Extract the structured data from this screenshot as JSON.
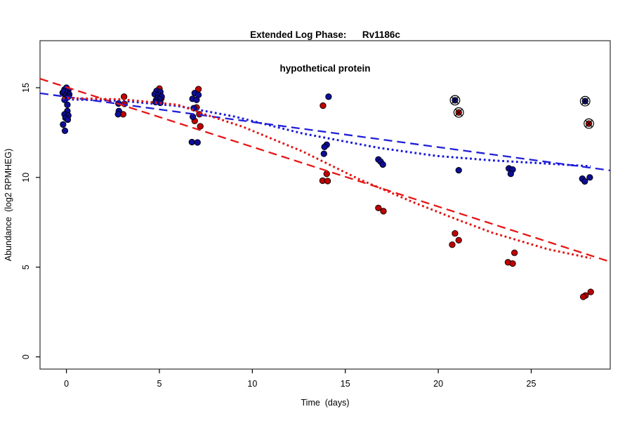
{
  "chart_data": {
    "type": "scatter",
    "title": "Extended Log Phase:      Rv1186c",
    "subtitle": "hypothetical protein",
    "xlabel": "Time  (days)",
    "ylabel": "Abundance  (log2 RPMHEG)",
    "xlim": [
      -1.42,
      29.25
    ],
    "ylim": [
      -0.68,
      17.62
    ],
    "xticks": [
      0,
      5,
      10,
      15,
      20,
      25
    ],
    "yticks": [
      0,
      5,
      10,
      15
    ],
    "grid": false,
    "legend": "none",
    "marker": {
      "radius": 4.2,
      "outline": "#000000",
      "flagged_symbol": "circle-x"
    },
    "colors": {
      "blue_points": "#0d0d96",
      "red_points": "#c00000",
      "blue_line": "#2020d8",
      "red_line": "#e81515",
      "box": "#404040"
    },
    "series": [
      {
        "name": "red",
        "color": "#c00000",
        "points": [
          [
            0.1,
            14.6
          ],
          [
            -0.05,
            14.45
          ],
          [
            3.1,
            14.5
          ],
          [
            3.12,
            14.1
          ],
          [
            3.05,
            13.52
          ],
          [
            5.0,
            14.95
          ],
          [
            5.1,
            14.4
          ],
          [
            7.1,
            14.92
          ],
          [
            7.0,
            13.9
          ],
          [
            7.15,
            13.52
          ],
          [
            6.9,
            13.15
          ],
          [
            7.2,
            12.85
          ],
          [
            13.8,
            14.0
          ],
          [
            14.0,
            10.2
          ],
          [
            13.78,
            9.82
          ],
          [
            14.05,
            9.8
          ],
          [
            16.78,
            8.3
          ],
          [
            17.05,
            8.12
          ],
          [
            20.9,
            6.88
          ],
          [
            21.1,
            6.5
          ],
          [
            20.75,
            6.25
          ],
          [
            24.1,
            5.8
          ],
          [
            23.75,
            5.27
          ],
          [
            24.0,
            5.2
          ],
          [
            28.2,
            3.62
          ],
          [
            27.92,
            3.42
          ],
          [
            27.8,
            3.35
          ]
        ],
        "flagged_points": [
          [
            21.1,
            13.62
          ],
          [
            28.1,
            13.0
          ]
        ]
      },
      {
        "name": "blue",
        "color": "#0d0d96",
        "points": [
          [
            -0.2,
            14.72
          ],
          [
            -0.1,
            14.9
          ],
          [
            0.0,
            15.0
          ],
          [
            0.1,
            14.86
          ],
          [
            -0.15,
            14.78
          ],
          [
            0.05,
            14.7
          ],
          [
            0.15,
            14.62
          ],
          [
            -0.05,
            14.55
          ],
          [
            0.1,
            14.5
          ],
          [
            0.0,
            14.42
          ],
          [
            -0.1,
            14.32
          ],
          [
            0.05,
            14.05
          ],
          [
            0.05,
            13.7
          ],
          [
            -0.1,
            13.52
          ],
          [
            0.1,
            13.45
          ],
          [
            -0.05,
            13.32
          ],
          [
            0.07,
            13.22
          ],
          [
            -0.18,
            12.95
          ],
          [
            -0.08,
            12.6
          ],
          [
            2.8,
            14.12
          ],
          [
            2.82,
            13.7
          ],
          [
            2.78,
            13.52
          ],
          [
            4.85,
            14.82
          ],
          [
            5.05,
            14.76
          ],
          [
            4.75,
            14.64
          ],
          [
            4.95,
            14.58
          ],
          [
            5.12,
            14.5
          ],
          [
            4.9,
            14.44
          ],
          [
            5.0,
            14.36
          ],
          [
            4.82,
            14.3
          ],
          [
            4.8,
            14.2
          ],
          [
            5.05,
            14.16
          ],
          [
            6.9,
            14.7
          ],
          [
            7.1,
            14.6
          ],
          [
            6.78,
            14.38
          ],
          [
            7.0,
            14.32
          ],
          [
            6.85,
            13.86
          ],
          [
            6.8,
            13.38
          ],
          [
            6.75,
            11.97
          ],
          [
            7.05,
            11.95
          ],
          [
            14.1,
            14.5
          ],
          [
            14.0,
            11.82
          ],
          [
            13.88,
            11.7
          ],
          [
            13.85,
            11.32
          ],
          [
            16.78,
            11.0
          ],
          [
            16.9,
            10.88
          ],
          [
            17.02,
            10.72
          ],
          [
            21.1,
            10.4
          ],
          [
            23.8,
            10.5
          ],
          [
            24.0,
            10.44
          ],
          [
            23.9,
            10.2
          ],
          [
            28.15,
            10.0
          ],
          [
            27.75,
            9.93
          ],
          [
            27.88,
            9.78
          ]
        ],
        "flagged_points": [
          [
            20.9,
            14.3
          ],
          [
            27.9,
            14.25
          ]
        ]
      }
    ],
    "fit_lines": [
      {
        "name": "blue-dashed-fit",
        "group": "blue",
        "style": "longdash",
        "color": "#2020d8",
        "points": [
          [
            -1.42,
            14.69
          ],
          [
            29.25,
            10.39
          ]
        ]
      },
      {
        "name": "red-dashed-fit",
        "group": "red",
        "style": "longdash",
        "color": "#e81515",
        "points": [
          [
            -1.42,
            15.5
          ],
          [
            29.25,
            5.3
          ]
        ]
      },
      {
        "name": "blue-dotted-fit",
        "group": "blue",
        "style": "dotted",
        "color": "#1818d8",
        "points": [
          [
            -0.2,
            14.36
          ],
          [
            3,
            14.27
          ],
          [
            6,
            13.98
          ],
          [
            9,
            13.4
          ],
          [
            12.7,
            12.45
          ],
          [
            16.8,
            11.65
          ],
          [
            19.9,
            11.2
          ],
          [
            22.9,
            10.95
          ],
          [
            26,
            10.76
          ],
          [
            28.2,
            10.62
          ]
        ]
      },
      {
        "name": "red-dotted-fit",
        "group": "red",
        "style": "dotted",
        "color": "#e01515",
        "points": [
          [
            -0.2,
            14.43
          ],
          [
            3,
            14.35
          ],
          [
            6,
            14.05
          ],
          [
            7.5,
            13.5
          ],
          [
            9.5,
            12.82
          ],
          [
            12.7,
            11.45
          ],
          [
            15.7,
            9.92
          ],
          [
            18.7,
            8.6
          ],
          [
            21,
            7.66
          ],
          [
            22.9,
            6.92
          ],
          [
            25.9,
            6.0
          ],
          [
            28.2,
            5.5
          ]
        ]
      }
    ]
  }
}
